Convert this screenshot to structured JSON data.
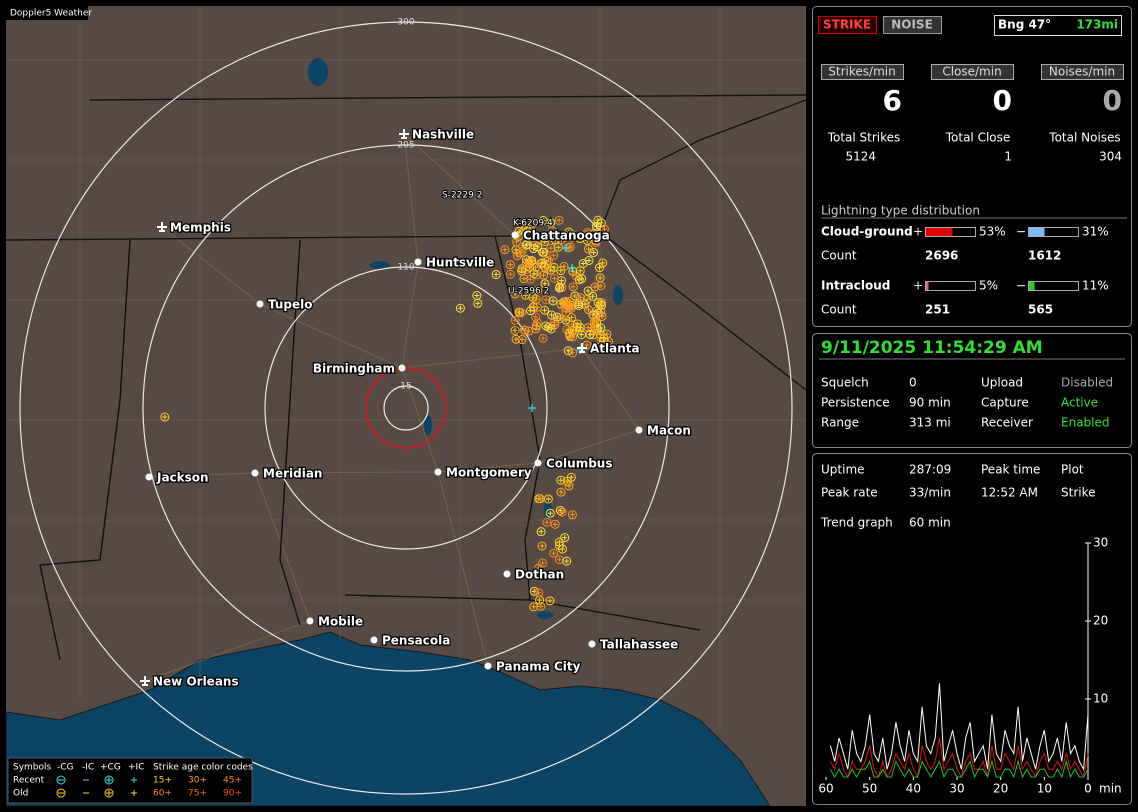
{
  "window_title": "Doppler5 Weather",
  "map": {
    "rings": [
      "300",
      "205",
      "110",
      "15"
    ],
    "cities": [
      "Nashville",
      "Memphis",
      "Chattanooga",
      "Huntsville",
      "Tupelo",
      "Birmingham",
      "Atlanta",
      "Macon",
      "Jackson",
      "Meridian",
      "Montgomery",
      "Columbus",
      "Dothan",
      "Mobile",
      "Pensacola",
      "Tallahassee",
      "Panama City",
      "New Orleans"
    ],
    "annotations": [
      "S-2229  2",
      "K-6209  4",
      "U-2596  2"
    ],
    "legend": {
      "headers": [
        "Symbols",
        "-CG",
        "-IC",
        "+CG",
        "+IC"
      ],
      "age_title": "Strike age color codes",
      "rows": [
        {
          "label": "Recent",
          "ages": [
            "15+",
            "30+",
            "45+"
          ]
        },
        {
          "label": "Old",
          "ages": [
            "60+",
            "75+",
            "90+"
          ]
        }
      ]
    }
  },
  "top": {
    "strike": "STRIKE",
    "noise": "NOISE",
    "bearing": "Bng 47°",
    "distance": "173mi"
  },
  "rates": [
    {
      "label": "Strikes/min",
      "value": 6
    },
    {
      "label": "Close/min",
      "value": 0
    },
    {
      "label": "Noises/min",
      "value": 0
    }
  ],
  "totals": [
    {
      "label": "Total Strikes",
      "value": 5124
    },
    {
      "label": "Total Close",
      "value": 1
    },
    {
      "label": "Total Noises",
      "value": 304
    }
  ],
  "distribution": {
    "title": "Lightning type distribution",
    "count_label": "Count",
    "rows": [
      {
        "name": "Cloud-ground",
        "pos_sign": "+",
        "pos": {
          "value": 53,
          "label": "53%"
        },
        "neg_sign": "−",
        "neg": {
          "value": 31,
          "label": "31%"
        },
        "pos_count": 2696,
        "neg_count": 1612
      },
      {
        "name": "Intracloud",
        "pos_sign": "+",
        "pos": {
          "value": 5,
          "label": "5%"
        },
        "neg_sign": "−",
        "neg": {
          "value": 11,
          "label": "11%"
        },
        "pos_count": 251,
        "neg_count": 565
      }
    ]
  },
  "status": {
    "datetime": "9/11/2025 11:54:29 AM",
    "rows": [
      [
        "Squelch",
        0,
        "Upload",
        "Disabled"
      ],
      [
        "Persistence",
        "90 min",
        "Capture",
        "Active"
      ],
      [
        "Range",
        "313 mi",
        "Receiver",
        "Enabled"
      ]
    ]
  },
  "stats": {
    "rows": [
      [
        "Uptime",
        "287:09",
        "Peak time",
        "Plot"
      ],
      [
        "Peak rate",
        "33/min",
        "12:52 AM",
        "Strike"
      ]
    ],
    "trend": [
      "Trend graph",
      "60 min"
    ]
  },
  "chart_data": {
    "type": "line",
    "x_unit": "min",
    "xlim": [
      60,
      0
    ],
    "xticks": [
      60,
      50,
      40,
      30,
      20,
      10,
      0
    ],
    "ylim": [
      0,
      30
    ],
    "yticks": [
      10,
      20,
      30
    ],
    "x": [
      59,
      58,
      57,
      56,
      55,
      54,
      53,
      52,
      51,
      50,
      49,
      48,
      47,
      46,
      45,
      44,
      43,
      42,
      41,
      40,
      39,
      38,
      37,
      36,
      35,
      34,
      33,
      32,
      31,
      30,
      29,
      28,
      27,
      26,
      25,
      24,
      23,
      22,
      21,
      20,
      19,
      18,
      17,
      16,
      15,
      14,
      13,
      12,
      11,
      10,
      9,
      8,
      7,
      6,
      5,
      4,
      3,
      2,
      1,
      0
    ],
    "series": [
      {
        "color": "#ffffff",
        "values": [
          4,
          2,
          5,
          3,
          1,
          6,
          3,
          2,
          4,
          8,
          3,
          2,
          5,
          1,
          3,
          7,
          4,
          2,
          6,
          3,
          2,
          9,
          4,
          3,
          5,
          12,
          2,
          4,
          6,
          3,
          1,
          5,
          7,
          2,
          3,
          4,
          1,
          8,
          3,
          2,
          6,
          4,
          3,
          9,
          2,
          5,
          3,
          1,
          4,
          6,
          2,
          3,
          5,
          2,
          7,
          3,
          4,
          2,
          1,
          8
        ]
      },
      {
        "color": "#e01010",
        "values": [
          2,
          1,
          3,
          1,
          0,
          2,
          1,
          1,
          2,
          4,
          1,
          0,
          2,
          0,
          1,
          3,
          2,
          1,
          3,
          1,
          0,
          4,
          2,
          1,
          2,
          5,
          1,
          2,
          3,
          1,
          0,
          2,
          3,
          1,
          1,
          2,
          0,
          4,
          1,
          1,
          3,
          2,
          1,
          4,
          1,
          2,
          1,
          0,
          2,
          3,
          1,
          1,
          2,
          1,
          3,
          1,
          2,
          1,
          0,
          3
        ]
      },
      {
        "color": "#20c020",
        "values": [
          1,
          0,
          1,
          0,
          0,
          1,
          0,
          1,
          1,
          2,
          0,
          0,
          1,
          0,
          0,
          2,
          1,
          0,
          1,
          0,
          0,
          2,
          1,
          0,
          1,
          2,
          0,
          1,
          1,
          0,
          0,
          1,
          2,
          0,
          1,
          1,
          0,
          2,
          0,
          0,
          1,
          1,
          0,
          2,
          0,
          1,
          0,
          0,
          1,
          1,
          0,
          0,
          1,
          0,
          2,
          0,
          1,
          0,
          0,
          1
        ]
      }
    ]
  }
}
